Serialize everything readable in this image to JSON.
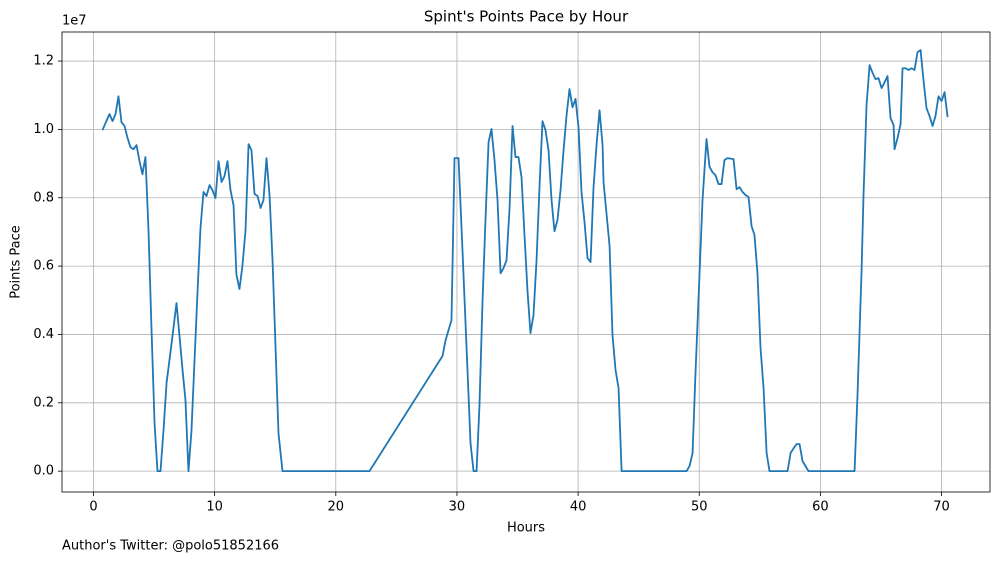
{
  "chart_data": {
    "type": "line",
    "title": "Spint's Points Pace by Hour",
    "xlabel": "Hours",
    "ylabel": "Points Pace",
    "y_offset_label": "1e7",
    "footnote": "Author's Twitter: @polo51852166",
    "color": "#1f77b4",
    "grid": true,
    "xlim": [
      -2.6,
      74
    ],
    "ylim": [
      -0.061,
      1.285
    ],
    "xticks": [
      0,
      10,
      20,
      30,
      40,
      50,
      60,
      70
    ],
    "yticks": [
      {
        "value": 0,
        "label": "0.0"
      },
      0.2,
      0.4,
      0.6,
      0.8,
      {
        "value": 1,
        "label": "1.0"
      },
      1.2
    ],
    "x": [
      0.74,
      1.32,
      1.57,
      1.82,
      2.06,
      2.31,
      2.56,
      2.81,
      3.05,
      3.3,
      3.55,
      3.8,
      4.04,
      4.29,
      4.54,
      4.79,
      5.04,
      5.28,
      5.53,
      5.78,
      6.03,
      6.27,
      6.52,
      6.85,
      7.1,
      7.35,
      7.59,
      7.84,
      8.09,
      8.34,
      8.59,
      8.83,
      9.08,
      9.33,
      9.58,
      9.82,
      10.07,
      10.32,
      10.57,
      10.81,
      11.06,
      11.31,
      11.56,
      11.8,
      12.05,
      12.3,
      12.55,
      12.8,
      13.04,
      13.29,
      13.54,
      13.79,
      14.03,
      14.28,
      14.53,
      14.78,
      15.02,
      15.27,
      15.6,
      22.78,
      28.81,
      29.06,
      29.55,
      29.8,
      30.13,
      30.38,
      30.63,
      30.87,
      31.12,
      31.37,
      31.62,
      31.86,
      32.11,
      32.36,
      32.61,
      32.85,
      33.1,
      33.35,
      33.6,
      33.84,
      34.09,
      34.34,
      34.59,
      34.83,
      35.08,
      35.33,
      35.58,
      35.83,
      36.07,
      36.32,
      36.57,
      36.82,
      37.06,
      37.31,
      37.56,
      37.81,
      38.05,
      38.3,
      38.55,
      38.8,
      39.05,
      39.29,
      39.54,
      39.79,
      40.04,
      40.28,
      40.53,
      40.78,
      41.03,
      41.27,
      41.52,
      41.77,
      42.02,
      42.1,
      42.6,
      42.84,
      43.09,
      43.34,
      43.59,
      48.95,
      49.2,
      49.45,
      49.69,
      50.02,
      50.27,
      50.6,
      50.85,
      51.09,
      51.34,
      51.59,
      51.84,
      52.08,
      52.33,
      52.83,
      53.08,
      53.33,
      53.57,
      53.82,
      54.07,
      54.32,
      54.56,
      54.81,
      55.06,
      55.31,
      55.56,
      55.8,
      57.29,
      57.54,
      57.79,
      58.03,
      58.28,
      58.53,
      59.02,
      62.82,
      63.07,
      63.4,
      63.56,
      63.81,
      64.06,
      64.31,
      64.55,
      64.8,
      65.05,
      65.3,
      65.54,
      65.79,
      66.04,
      66.12,
      66.37,
      66.62,
      66.78,
      67.03,
      67.27,
      67.52,
      67.77,
      68.02,
      68.27,
      68.51,
      68.76,
      69.01,
      69.26,
      69.5,
      69.75,
      70,
      70.25,
      70.5
    ],
    "values": [
      0.998,
      1.045,
      1.024,
      1.045,
      1.097,
      1.021,
      1.01,
      0.975,
      0.948,
      0.942,
      0.954,
      0.907,
      0.869,
      0.919,
      0.705,
      0.413,
      0.14,
      0,
      0,
      0.12,
      0.258,
      0.325,
      0.395,
      0.492,
      0.395,
      0.296,
      0.208,
      0,
      0.12,
      0.325,
      0.527,
      0.711,
      0.817,
      0.805,
      0.837,
      0.822,
      0.799,
      0.907,
      0.846,
      0.863,
      0.907,
      0.822,
      0.778,
      0.574,
      0.533,
      0.603,
      0.705,
      0.957,
      0.939,
      0.811,
      0.805,
      0.77,
      0.793,
      0.916,
      0.808,
      0.615,
      0.369,
      0.111,
      0,
      0,
      0.337,
      0.383,
      0.442,
      0.916,
      0.916,
      0.711,
      0.5,
      0.296,
      0.082,
      0,
      0,
      0.193,
      0.495,
      0.74,
      0.963,
      1.001,
      0.91,
      0.793,
      0.579,
      0.594,
      0.617,
      0.767,
      1.01,
      0.919,
      0.919,
      0.86,
      0.688,
      0.524,
      0.404,
      0.457,
      0.617,
      0.837,
      1.024,
      0.998,
      0.939,
      0.793,
      0.702,
      0.735,
      0.822,
      0.939,
      1.042,
      1.118,
      1.065,
      1.089,
      1.004,
      0.817,
      0.729,
      0.623,
      0.612,
      0.828,
      0.954,
      1.056,
      0.954,
      0.846,
      0.658,
      0.398,
      0.296,
      0.243,
      0,
      0,
      0.015,
      0.053,
      0.287,
      0.574,
      0.793,
      0.972,
      0.89,
      0.875,
      0.866,
      0.84,
      0.84,
      0.91,
      0.916,
      0.913,
      0.825,
      0.831,
      0.817,
      0.808,
      0.802,
      0.717,
      0.691,
      0.577,
      0.36,
      0.243,
      0.053,
      0,
      0,
      0.053,
      0.067,
      0.079,
      0.079,
      0.029,
      0,
      0,
      0.228,
      0.588,
      0.808,
      1.071,
      1.188,
      1.165,
      1.147,
      1.15,
      1.121,
      1.138,
      1.156,
      1.033,
      1.013,
      0.942,
      0.975,
      1.016,
      1.179,
      1.179,
      1.174,
      1.179,
      1.174,
      1.226,
      1.232,
      1.144,
      1.062,
      1.039,
      1.01,
      1.039,
      1.097,
      1.083,
      1.109,
      1.036
    ]
  }
}
